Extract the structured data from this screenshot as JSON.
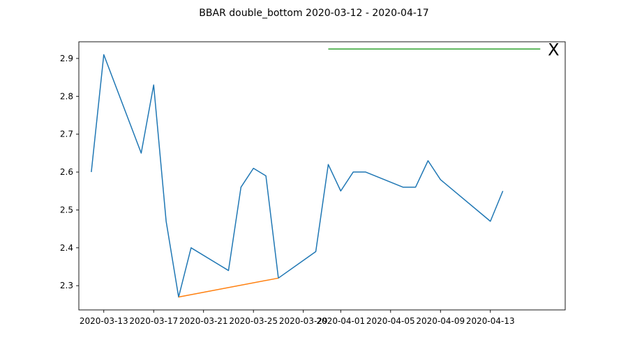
{
  "chart_data": {
    "type": "line",
    "title": "BBAR double_bottom 2020-03-12 - 2020-04-17",
    "xlabel": "",
    "ylabel": "",
    "xlim": [
      "2020-03-11",
      "2020-04-19"
    ],
    "ylim": [
      2.236,
      2.944
    ],
    "grid": false,
    "x_ticks": [
      "2020-03-13",
      "2020-03-17",
      "2020-03-21",
      "2020-03-25",
      "2020-03-29",
      "2020-04-01",
      "2020-04-05",
      "2020-04-09",
      "2020-04-13"
    ],
    "y_ticks": [
      2.3,
      2.4,
      2.5,
      2.6,
      2.7,
      2.8,
      2.9
    ],
    "y_tick_labels": [
      "2.3",
      "2.4",
      "2.5",
      "2.6",
      "2.7",
      "2.8",
      "2.9"
    ],
    "series": [
      {
        "color": "#1f77b4",
        "x": [
          "2020-03-12",
          "2020-03-13",
          "2020-03-16",
          "2020-03-17",
          "2020-03-18",
          "2020-03-19",
          "2020-03-20",
          "2020-03-23",
          "2020-03-24",
          "2020-03-25",
          "2020-03-26",
          "2020-03-27",
          "2020-03-30",
          "2020-03-31",
          "2020-04-01",
          "2020-04-02",
          "2020-04-03",
          "2020-04-06",
          "2020-04-07",
          "2020-04-08",
          "2020-04-09",
          "2020-04-13",
          "2020-04-14"
        ],
        "y": [
          2.6,
          2.91,
          2.65,
          2.83,
          2.47,
          2.27,
          2.4,
          2.34,
          2.56,
          2.61,
          2.59,
          2.32,
          2.39,
          2.62,
          2.55,
          2.6,
          2.6,
          2.56,
          2.56,
          2.63,
          2.58,
          2.47,
          2.55
        ]
      },
      {
        "color": "#ff7f0e",
        "x": [
          "2020-03-19",
          "2020-03-27"
        ],
        "y": [
          2.27,
          2.32
        ]
      },
      {
        "color": "#2ca02c",
        "x": [
          "2020-03-31",
          "2020-04-17"
        ],
        "y": [
          2.925,
          2.925
        ]
      }
    ],
    "annotations": [
      {
        "text": "X",
        "x": "2020-04-18",
        "y": 2.925,
        "color": "#ff0000"
      }
    ]
  }
}
